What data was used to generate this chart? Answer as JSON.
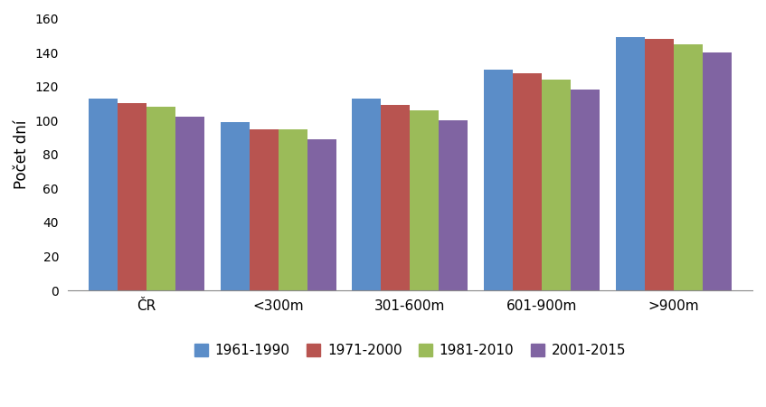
{
  "categories": [
    "ČR",
    "<300m",
    "301-600m",
    "601-900m",
    ">900m"
  ],
  "series": {
    "1961-1990": [
      113,
      99,
      113,
      130,
      149
    ],
    "1971-2000": [
      110,
      95,
      109,
      128,
      148
    ],
    "1981-2010": [
      108,
      95,
      106,
      124,
      145
    ],
    "2001-2015": [
      102,
      89,
      100,
      118,
      140
    ]
  },
  "colors": {
    "1961-1990": "#5B8DC8",
    "1971-2000": "#B85450",
    "1981-2010": "#9BBB59",
    "2001-2015": "#8064A2"
  },
  "ylabel": "Počet dní",
  "ylim": [
    0,
    160
  ],
  "yticks": [
    0,
    20,
    40,
    60,
    80,
    100,
    120,
    140,
    160
  ],
  "legend_labels": [
    "1961-1990",
    "1971-2000",
    "1981-2010",
    "2001-2015"
  ],
  "bar_width": 0.22,
  "background_color": "#FFFFFF"
}
